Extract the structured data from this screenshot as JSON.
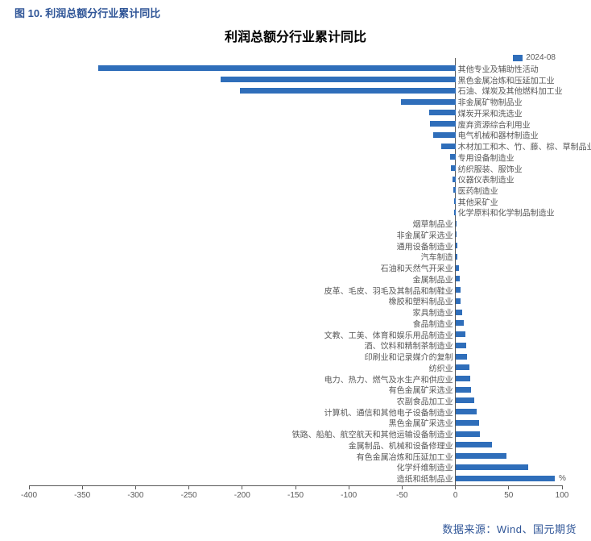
{
  "figure_caption": "图 10.  利润总额分行业累计同比",
  "chart": {
    "type": "bar-horizontal",
    "title": "利润总额分行业累计同比",
    "title_fontsize": 16,
    "title_color": "#000000",
    "legend_label": "2024-08",
    "unit_label": "%",
    "bar_color": "#2f6eba",
    "background_color": "#ffffff",
    "axis_color": "#595959",
    "label_color": "#595959",
    "label_fontsize": 10,
    "x_axis": {
      "min": -400,
      "max": 100,
      "tick_step": 50,
      "ticks": [
        -400,
        -350,
        -300,
        -250,
        -200,
        -150,
        -100,
        -50,
        0,
        50,
        100
      ]
    },
    "categories": [
      {
        "label": "其他专业及辅助性活动",
        "value": -335
      },
      {
        "label": "黑色金属冶炼和压延加工业",
        "value": -220
      },
      {
        "label": "石油、煤炭及其他燃料加工业",
        "value": -202
      },
      {
        "label": "非金属矿物制品业",
        "value": -51
      },
      {
        "label": "煤炭开采和洗选业",
        "value": -25
      },
      {
        "label": "废弃资源综合利用业",
        "value": -24
      },
      {
        "label": "电气机械和器材制造业",
        "value": -21
      },
      {
        "label": "木材加工和木、竹、藤、棕、草制品业",
        "value": -13
      },
      {
        "label": "专用设备制造业",
        "value": -5
      },
      {
        "label": "纺织服装、服饰业",
        "value": -4
      },
      {
        "label": "仪器仪表制造业",
        "value": -3
      },
      {
        "label": "医药制造业",
        "value": -2
      },
      {
        "label": "其他采矿业",
        "value": -1
      },
      {
        "label": "化学原料和化学制品制造业",
        "value": -1
      },
      {
        "label": "烟草制品业",
        "value": 1
      },
      {
        "label": "非金属矿采选业",
        "value": 1
      },
      {
        "label": "通用设备制造业",
        "value": 2
      },
      {
        "label": "汽车制造",
        "value": 2
      },
      {
        "label": "石油和天然气开采业",
        "value": 3
      },
      {
        "label": "金属制品业",
        "value": 4
      },
      {
        "label": "皮革、毛皮、羽毛及其制品和制鞋业",
        "value": 5
      },
      {
        "label": "橡胶和塑料制品业",
        "value": 5
      },
      {
        "label": "家具制造业",
        "value": 6
      },
      {
        "label": "食品制造业",
        "value": 8
      },
      {
        "label": "文教、工美、体育和娱乐用品制造业",
        "value": 9
      },
      {
        "label": "酒、饮料和精制茶制造业",
        "value": 10
      },
      {
        "label": "印刷业和记录媒介的复制",
        "value": 11
      },
      {
        "label": "纺织业",
        "value": 13
      },
      {
        "label": "电力、热力、燃气及水生产和供应业",
        "value": 14
      },
      {
        "label": "有色金属矿采选业",
        "value": 15
      },
      {
        "label": "农副食品加工业",
        "value": 18
      },
      {
        "label": "计算机、通信和其他电子设备制造业",
        "value": 20
      },
      {
        "label": "黑色金属矿采选业",
        "value": 22
      },
      {
        "label": "铁路、船舶、航空航天和其他运输设备制造业",
        "value": 23
      },
      {
        "label": "金属制品、机械和设备修理业",
        "value": 34
      },
      {
        "label": "有色金属冶炼和压延加工业",
        "value": 48
      },
      {
        "label": "化学纤维制造业",
        "value": 68
      },
      {
        "label": "造纸和纸制品业",
        "value": 93
      }
    ]
  },
  "source_label": "数据来源：Wind、国元期货"
}
